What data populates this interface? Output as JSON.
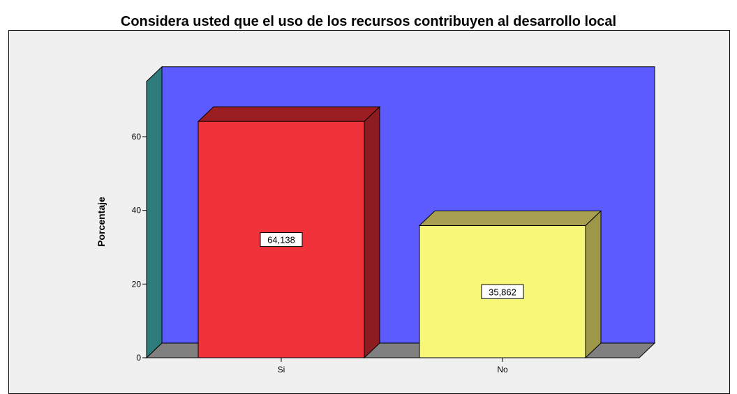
{
  "chart_data": {
    "type": "bar",
    "title": "Considera usted que el uso de los recursos contribuyen al desarrollo local",
    "categories": [
      "Si",
      "No"
    ],
    "values": [
      64.138,
      35.862
    ],
    "data_labels": [
      "64,138",
      "35,862"
    ],
    "ylabel": "Porcentaje",
    "xlabel": "",
    "ylim": [
      0,
      75
    ],
    "yticks": [
      0,
      20,
      40,
      60
    ],
    "ytick_labels": [
      "0",
      "20",
      "40",
      "60"
    ],
    "grid": false,
    "legend": "none",
    "three_d": true,
    "colors": {
      "background_wall": "#5b5bff",
      "side_wall": "#2e7b7b",
      "floor": "#808080",
      "frame": "#f0f0f0",
      "bars": [
        {
          "front": "#f0323a",
          "top": "#9a1e22",
          "side": "#8c1c20"
        },
        {
          "front": "#f8f878",
          "top": "#a8a050",
          "side": "#9c9848"
        }
      ]
    }
  }
}
